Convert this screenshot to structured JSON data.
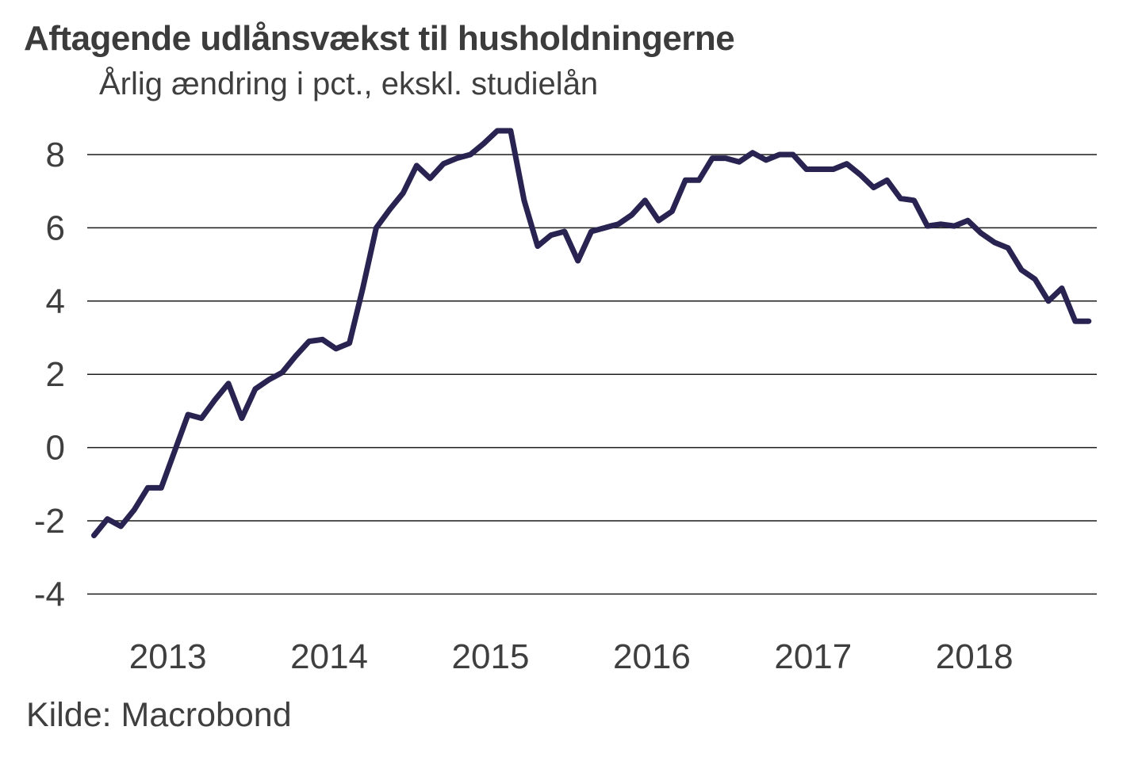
{
  "header": {
    "title": "Aftagende udlånsvækst til husholdningerne",
    "subtitle": "Årlig ændring i pct., ekskl. studielån"
  },
  "footer": {
    "source": "Kilde: Macrobond"
  },
  "chart_data": {
    "type": "line",
    "title": "Aftagende udlånsvækst til husholdningerne",
    "subtitle": "Årlig ændring i pct., ekskl. studielån",
    "source": "Kilde: Macrobond",
    "x_start": "2013-01",
    "frequency": "monthly",
    "x_tick_labels": [
      "2013",
      "2014",
      "2015",
      "2016",
      "2017",
      "2018"
    ],
    "y_ticks": [
      8,
      6,
      4,
      2,
      0,
      -2,
      -4
    ],
    "ylim": [
      -4.5,
      9.2
    ],
    "grid": "horizontal",
    "legend": "none",
    "line_color": "#282350",
    "grid_color": "#1c1c1c",
    "text_color": "#3f3f3f",
    "series": [
      {
        "values": [
          -2.4,
          -1.95,
          -2.15,
          -1.7,
          -1.1,
          -1.1,
          -0.1,
          0.9,
          0.8,
          1.3,
          1.75,
          0.8,
          1.6,
          1.85,
          2.05,
          2.5,
          2.9,
          2.95,
          2.7,
          2.85,
          4.35,
          6.0,
          6.5,
          6.95,
          7.7,
          7.35,
          7.75,
          7.9,
          8.0,
          8.3,
          8.65,
          8.65,
          6.75,
          5.5,
          5.8,
          5.9,
          5.1,
          5.9,
          6.0,
          6.1,
          6.35,
          6.75,
          6.2,
          6.45,
          7.3,
          7.3,
          7.9,
          7.9,
          7.8,
          8.05,
          7.85,
          8.0,
          8.0,
          7.6,
          7.6,
          7.6,
          7.75,
          7.45,
          7.1,
          7.3,
          6.8,
          6.75,
          6.05,
          6.1,
          6.05,
          6.2,
          5.85,
          5.6,
          5.45,
          4.85,
          4.6,
          4.0,
          4.35,
          3.45,
          3.45
        ]
      }
    ]
  }
}
